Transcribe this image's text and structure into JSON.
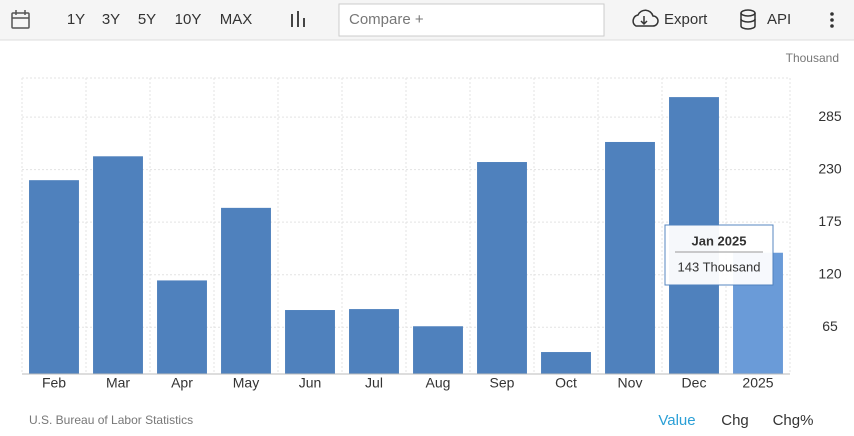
{
  "toolbar": {
    "ranges": [
      "1Y",
      "3Y",
      "5Y",
      "10Y",
      "MAX"
    ],
    "compare": "Compare +",
    "export": "Export",
    "api": "API"
  },
  "chart_data": {
    "type": "bar",
    "unit": "Thousand",
    "categories": [
      "Feb",
      "Mar",
      "Apr",
      "May",
      "Jun",
      "Jul",
      "Aug",
      "Sep",
      "Oct",
      "Nov",
      "Dec",
      "2025"
    ],
    "values": [
      219,
      244,
      114,
      190,
      83,
      84,
      66,
      238,
      39,
      259,
      306,
      143
    ],
    "colors": [
      "#4f81bd",
      "#4f81bd",
      "#4f81bd",
      "#4f81bd",
      "#4f81bd",
      "#4f81bd",
      "#4f81bd",
      "#4f81bd",
      "#4f81bd",
      "#4f81bd",
      "#4f81bd",
      "#6a9bd8"
    ],
    "ylim": [
      16,
      326
    ],
    "yticks": [
      65,
      120,
      175,
      230,
      285
    ],
    "grid": true,
    "tooltip": {
      "title": "Jan 2025",
      "text": "143 Thousand"
    }
  },
  "footer": {
    "source": "U.S. Bureau of Labor Statistics",
    "tabs": [
      "Value",
      "Chg",
      "Chg%"
    ]
  }
}
